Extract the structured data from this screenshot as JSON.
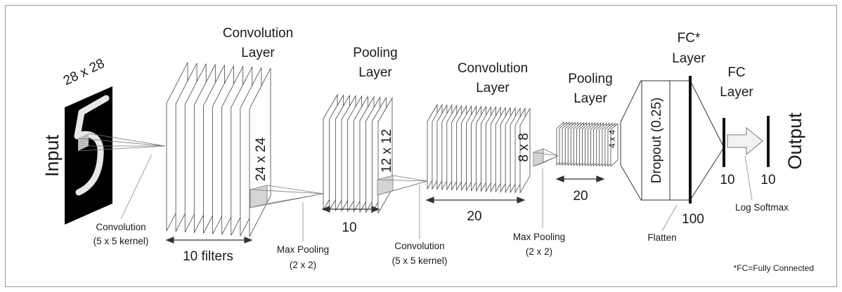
{
  "input": {
    "size": "28 x 28",
    "label": "Input",
    "digit": "5"
  },
  "conv1": {
    "title_line1": "Convolution",
    "title_line2": "Layer",
    "size": "24 x 24",
    "depth": "10 filters",
    "op_line1": "Convolution",
    "op_line2": "(5 x 5 kernel)",
    "maps": 10
  },
  "pool1": {
    "title_line1": "Pooling",
    "title_line2": "Layer",
    "size": "12 x 12",
    "depth": "10",
    "op_line1": "Max Pooling",
    "op_line2": "(2 x 2)",
    "maps": 10
  },
  "conv2": {
    "title_line1": "Convolution",
    "title_line2": "Layer",
    "size": "8 x 8",
    "depth": "20",
    "op_line1": "Convolution",
    "op_line2": "(5 x 5 kernel)",
    "maps": 20
  },
  "pool2": {
    "title_line1": "Pooling",
    "title_line2": "Layer",
    "size": "4 x 4",
    "depth": "20",
    "op_line1": "Max Pooling",
    "op_line2": "(2 x 2)",
    "maps": 20
  },
  "fc1": {
    "title_line1": "FC*",
    "title_line2": "Layer",
    "dropout": "Dropout (0.25)",
    "units": "100",
    "flatten": "Flatten"
  },
  "fc2": {
    "title_line1": "FC",
    "title_line2": "Layer",
    "units": "10",
    "activation": "Log Softmax"
  },
  "output": {
    "label": "Output",
    "units": "10"
  },
  "footnote": "*FC=Fully Connected",
  "colors": {
    "line": "#4a4a4a",
    "frame": "#9a9a9a",
    "sheet": "#ffffff",
    "kernel": "#d4d4d4",
    "arrow_fill": "#f2f2f2"
  }
}
